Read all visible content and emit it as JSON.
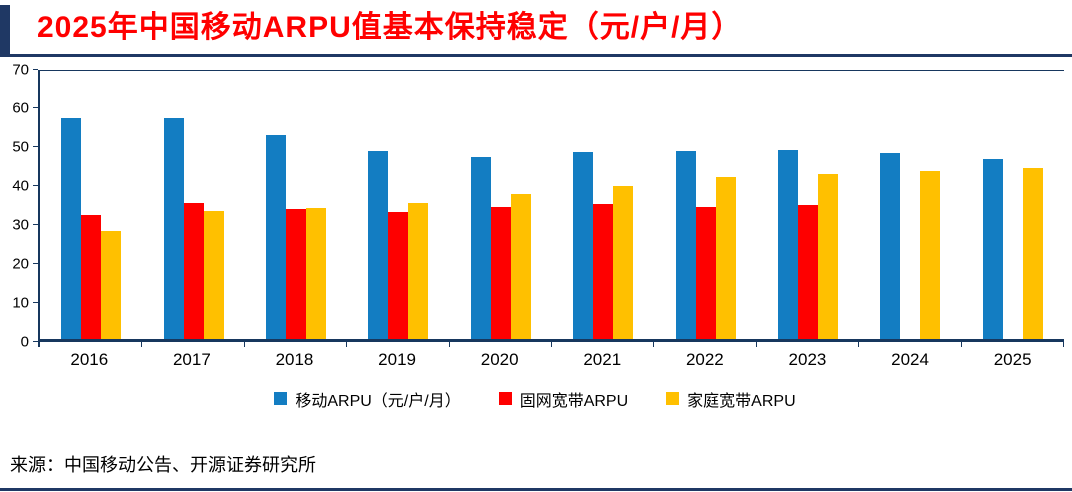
{
  "title": "2025年中国移动ARPU值基本保持稳定（元/户/月）",
  "source": "来源：中国移动公告、开源证券研究所",
  "colors": {
    "accent_navy": "#1F3864",
    "title_red": "#FF0000",
    "axis": "#17375E",
    "bar_blue": "#137DC2",
    "bar_red": "#FE0000",
    "bar_yellow": "#FFC000"
  },
  "chart_data": {
    "type": "bar",
    "categories": [
      "2016",
      "2017",
      "2018",
      "2019",
      "2020",
      "2021",
      "2022",
      "2023",
      "2024",
      "2025"
    ],
    "series": [
      {
        "name": "移动ARPU（元/户/月）",
        "color": "#137DC2",
        "values": [
          57.5,
          57.7,
          53.1,
          49.1,
          47.4,
          48.8,
          49.0,
          49.3,
          48.5,
          46.9
        ]
      },
      {
        "name": "固网宽带ARPU",
        "color": "#FE0000",
        "values": [
          32.3,
          35.5,
          33.8,
          33.1,
          34.3,
          35.2,
          34.4,
          35.0,
          null,
          null
        ]
      },
      {
        "name": "家庭宽带ARPU",
        "color": "#FFC000",
        "values": [
          28.2,
          33.2,
          34.2,
          35.3,
          37.8,
          39.8,
          42.1,
          43.1,
          43.8,
          44.6
        ]
      }
    ],
    "title": "",
    "xlabel": "",
    "ylabel": "",
    "ylim": [
      0,
      70
    ],
    "yticks": [
      0,
      10,
      20,
      30,
      40,
      50,
      60,
      70
    ],
    "grid": false,
    "legend_position": "bottom"
  }
}
